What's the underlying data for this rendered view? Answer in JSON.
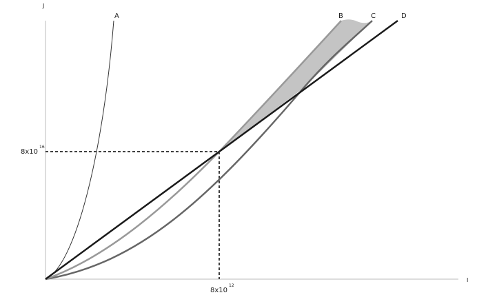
{
  "axes": {
    "y_label": "J",
    "x_label": "I"
  },
  "curves": [
    {
      "label": "A"
    },
    {
      "label": "B"
    },
    {
      "label": "C"
    },
    {
      "label": "D"
    }
  ],
  "y_marker": {
    "base": "8x10",
    "exponent": "16"
  },
  "x_marker": {
    "base": "8x10",
    "exponent": "12"
  }
}
